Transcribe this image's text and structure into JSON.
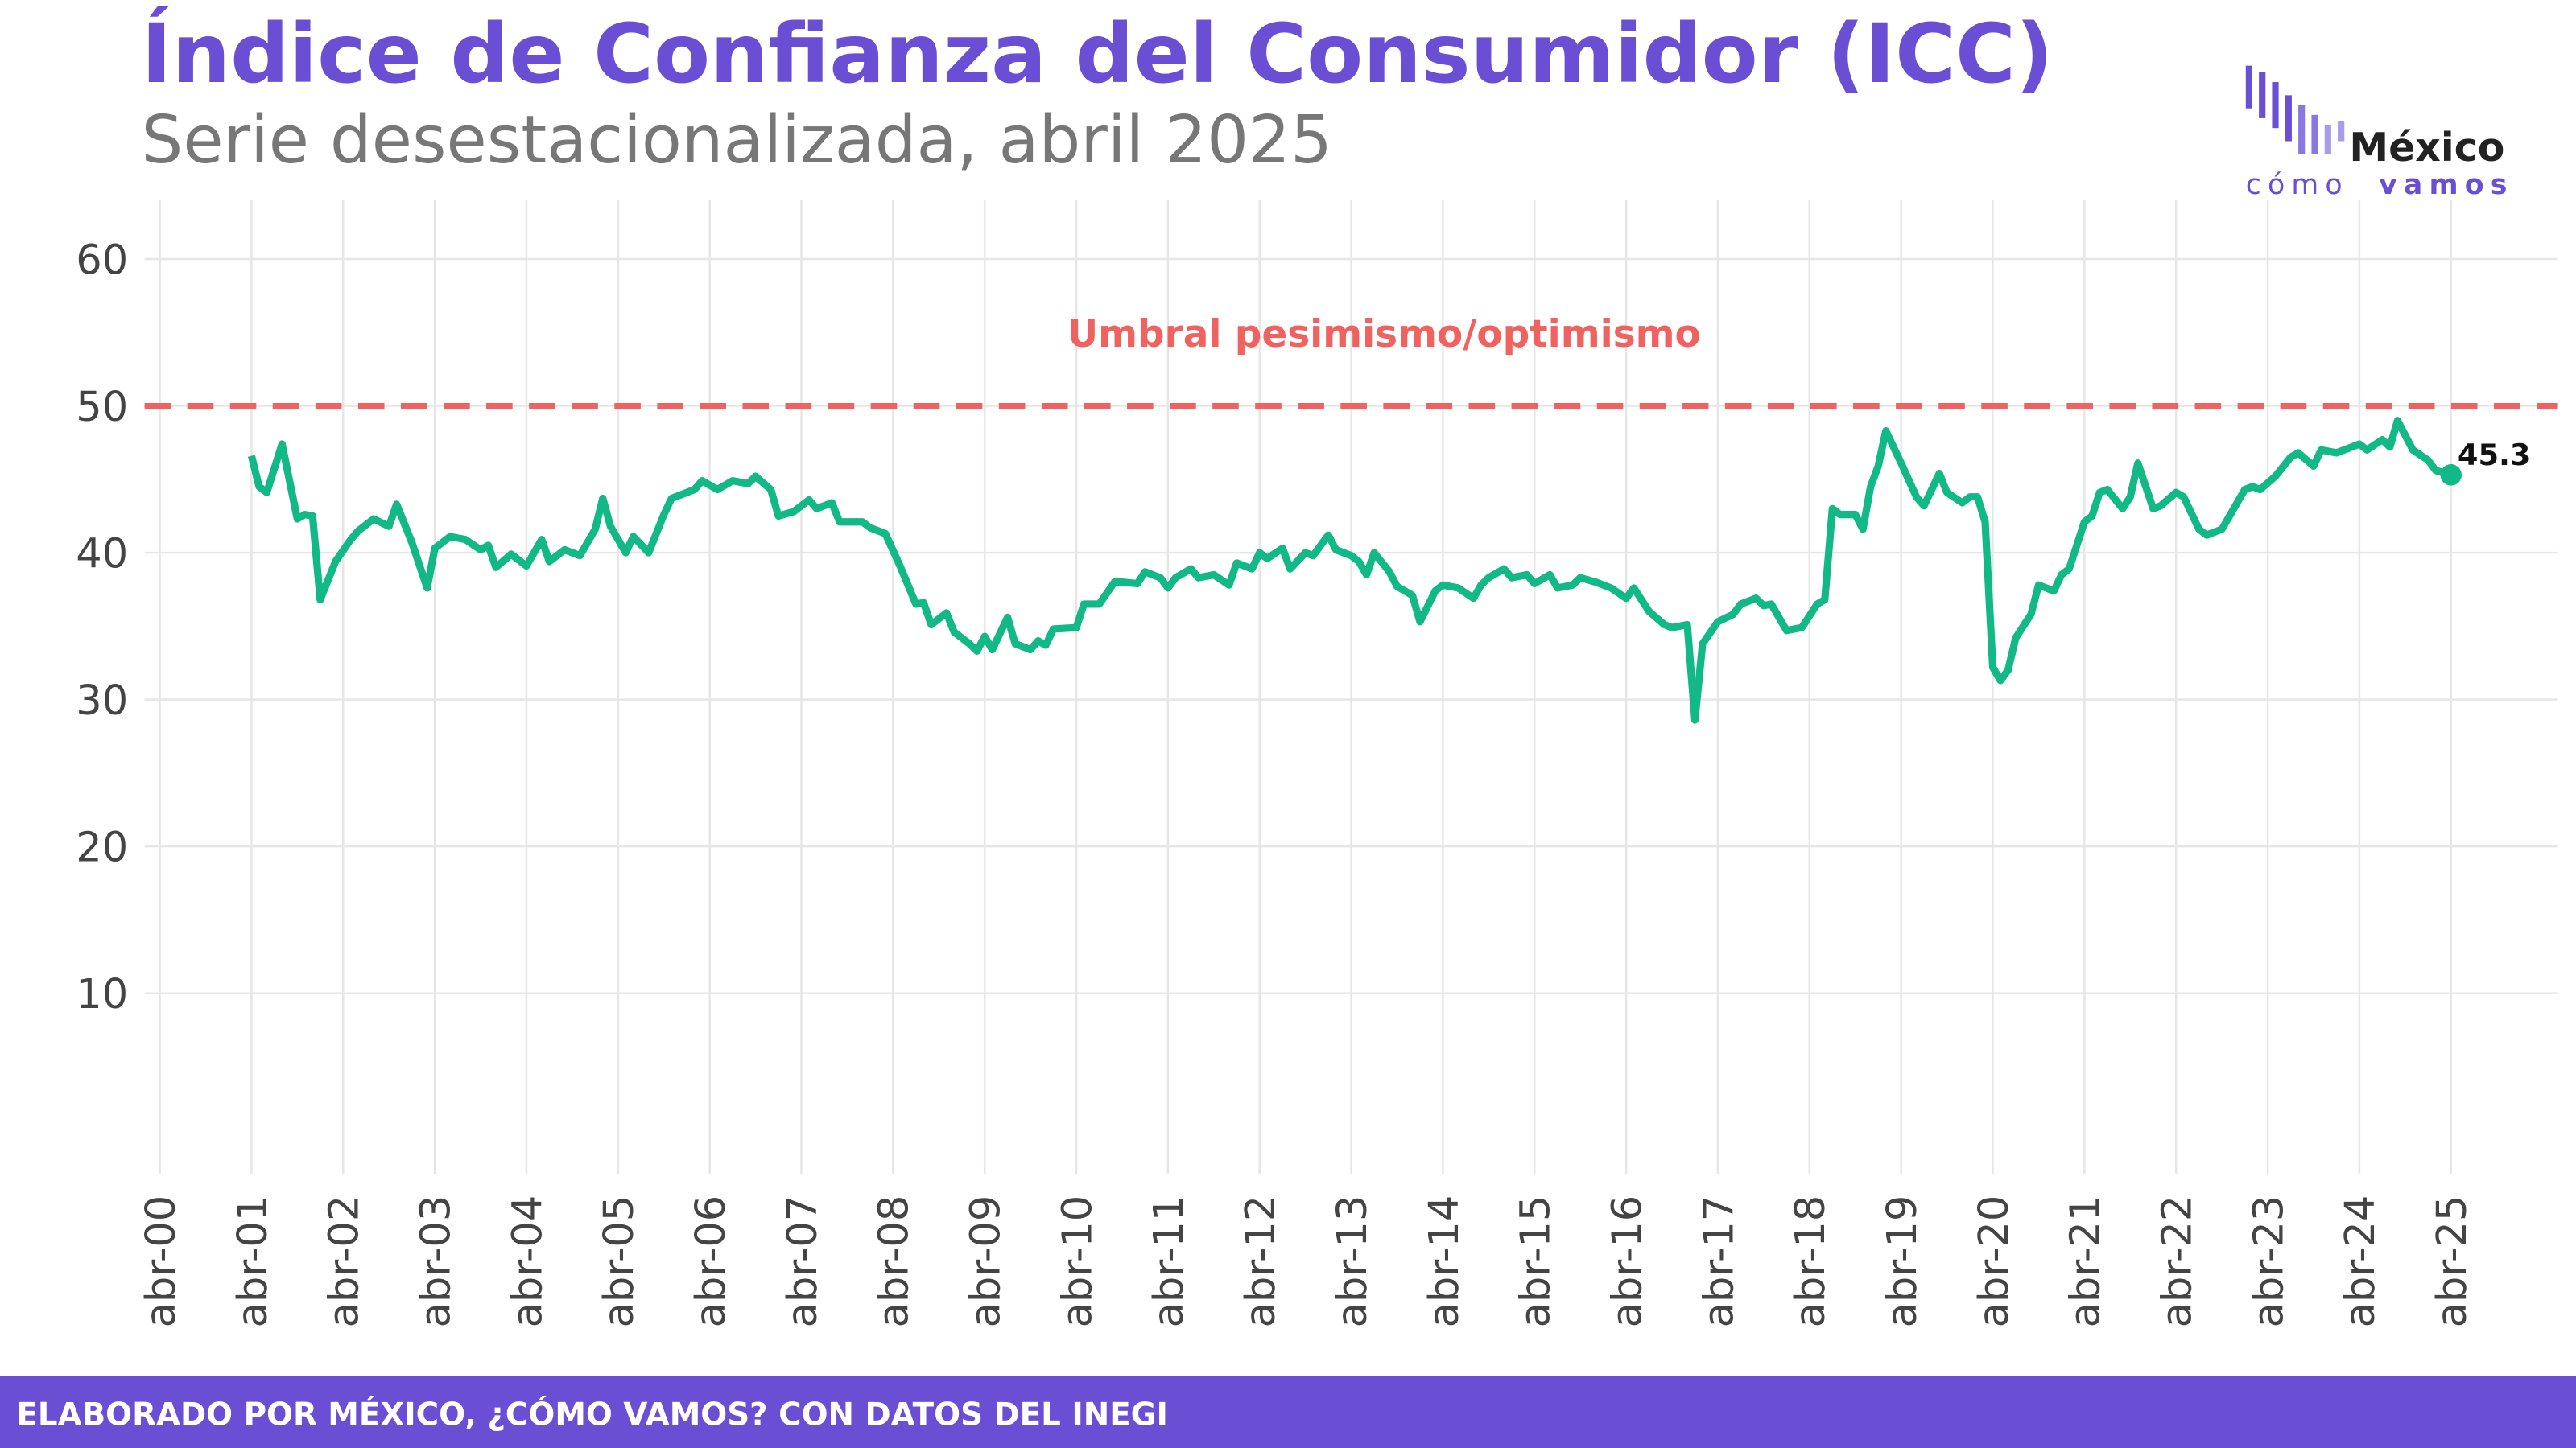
{
  "chart_data": {
    "type": "line",
    "title": "Índice de Confianza del Consumidor (ICC)",
    "subtitle": "Serie desestacionalizada, abril 2025",
    "source": "ELABORADO POR MÉXICO, ¿CÓMO VAMOS? CON DATOS DEL INEGI",
    "logo": {
      "name": "México",
      "tag_a": "cómo",
      "tag_b": "vamos"
    },
    "threshold": {
      "value": 50,
      "label": "Umbral pesimismo/optimismo",
      "color": "#f0625f"
    },
    "grid": true,
    "xlim": [
      "2000-02",
      "2026-06"
    ],
    "ylim": [
      -2.3,
      64
    ],
    "yticks": [
      10,
      20,
      30,
      40,
      50,
      60
    ],
    "xticks": [
      {
        "value": "2000-04",
        "label": "abr-00"
      },
      {
        "value": "2001-04",
        "label": "abr-01"
      },
      {
        "value": "2002-04",
        "label": "abr-02"
      },
      {
        "value": "2003-04",
        "label": "abr-03"
      },
      {
        "value": "2004-04",
        "label": "abr-04"
      },
      {
        "value": "2005-04",
        "label": "abr-05"
      },
      {
        "value": "2006-04",
        "label": "abr-06"
      },
      {
        "value": "2007-04",
        "label": "abr-07"
      },
      {
        "value": "2008-04",
        "label": "abr-08"
      },
      {
        "value": "2009-04",
        "label": "abr-09"
      },
      {
        "value": "2010-04",
        "label": "abr-10"
      },
      {
        "value": "2011-04",
        "label": "abr-11"
      },
      {
        "value": "2012-04",
        "label": "abr-12"
      },
      {
        "value": "2013-04",
        "label": "abr-13"
      },
      {
        "value": "2014-04",
        "label": "abr-14"
      },
      {
        "value": "2015-04",
        "label": "abr-15"
      },
      {
        "value": "2016-04",
        "label": "abr-16"
      },
      {
        "value": "2017-04",
        "label": "abr-17"
      },
      {
        "value": "2018-04",
        "label": "abr-18"
      },
      {
        "value": "2019-04",
        "label": "abr-19"
      },
      {
        "value": "2020-04",
        "label": "abr-20"
      },
      {
        "value": "2021-04",
        "label": "abr-21"
      },
      {
        "value": "2022-04",
        "label": "abr-22"
      },
      {
        "value": "2023-04",
        "label": "abr-23"
      },
      {
        "value": "2024-04",
        "label": "abr-24"
      },
      {
        "value": "2025-04",
        "label": "abr-25"
      }
    ],
    "x": [
      "2001-04",
      "2001-05",
      "2001-06",
      "2001-08",
      "2001-10",
      "2001-11",
      "2001-12",
      "2002-01",
      "2002-03",
      "2002-05",
      "2002-06",
      "2002-08",
      "2002-10",
      "2002-11",
      "2003-01",
      "2003-03",
      "2003-04",
      "2003-06",
      "2003-08",
      "2003-10",
      "2003-11",
      "2003-12",
      "2004-02",
      "2004-04",
      "2004-06",
      "2004-07",
      "2004-09",
      "2004-11",
      "2005-01",
      "2005-02",
      "2005-03",
      "2005-05",
      "2005-06",
      "2005-08",
      "2005-10",
      "2005-11",
      "2006-02",
      "2006-03",
      "2006-05",
      "2006-07",
      "2006-09",
      "2006-10",
      "2006-12",
      "2007-01",
      "2007-03",
      "2007-05",
      "2007-06",
      "2007-08",
      "2007-09",
      "2007-12",
      "2008-01",
      "2008-03",
      "2008-05",
      "2008-07",
      "2008-08",
      "2008-09",
      "2008-11",
      "2008-12",
      "2009-02",
      "2009-03",
      "2009-04",
      "2009-05",
      "2009-07",
      "2009-08",
      "2009-10",
      "2009-11",
      "2009-12",
      "2010-01",
      "2010-04",
      "2010-05",
      "2010-07",
      "2010-09",
      "2010-10",
      "2010-12",
      "2011-01",
      "2011-03",
      "2011-04",
      "2011-05",
      "2011-07",
      "2011-08",
      "2011-10",
      "2011-12",
      "2012-01",
      "2012-03",
      "2012-04",
      "2012-05",
      "2012-07",
      "2012-08",
      "2012-10",
      "2012-11",
      "2013-01",
      "2013-02",
      "2013-04",
      "2013-05",
      "2013-06",
      "2013-07",
      "2013-09",
      "2013-10",
      "2013-12",
      "2014-01",
      "2014-03",
      "2014-04",
      "2014-06",
      "2014-08",
      "2014-09",
      "2014-10",
      "2014-12",
      "2015-01",
      "2015-03",
      "2015-04",
      "2015-06",
      "2015-07",
      "2015-09",
      "2015-10",
      "2015-12",
      "2016-02",
      "2016-04",
      "2016-05",
      "2016-07",
      "2016-09",
      "2016-10",
      "2016-12",
      "2017-01",
      "2017-02",
      "2017-04",
      "2017-06",
      "2017-07",
      "2017-09",
      "2017-10",
      "2017-11",
      "2018-01",
      "2018-03",
      "2018-05",
      "2018-06",
      "2018-07",
      "2018-08",
      "2018-10",
      "2018-11",
      "2018-12",
      "2019-01",
      "2019-02",
      "2019-04",
      "2019-06",
      "2019-07",
      "2019-09",
      "2019-10",
      "2019-12",
      "2020-01",
      "2020-02",
      "2020-03",
      "2020-04",
      "2020-05",
      "2020-06",
      "2020-07",
      "2020-09",
      "2020-10",
      "2020-12",
      "2021-01",
      "2021-02",
      "2021-04",
      "2021-05",
      "2021-06",
      "2021-07",
      "2021-09",
      "2021-10",
      "2021-11",
      "2022-01",
      "2022-02",
      "2022-04",
      "2022-05",
      "2022-07",
      "2022-08",
      "2022-10",
      "2022-11",
      "2023-01",
      "2023-02",
      "2023-03",
      "2023-05",
      "2023-07",
      "2023-08",
      "2023-10",
      "2023-11",
      "2024-01",
      "2024-02",
      "2024-04",
      "2024-05",
      "2024-07",
      "2024-08",
      "2024-09",
      "2024-11",
      "2025-01",
      "2025-02",
      "2025-04"
    ],
    "series": [
      {
        "name": "ICC",
        "color": "#12b886",
        "values": [
          46.6,
          44.5,
          44.1,
          47.4,
          42.3,
          42.6,
          42.5,
          36.8,
          39.4,
          40.9,
          41.5,
          42.3,
          41.8,
          43.3,
          40.7,
          37.6,
          40.3,
          41.1,
          40.9,
          40.2,
          40.5,
          39.0,
          39.9,
          39.1,
          40.9,
          39.4,
          40.2,
          39.8,
          41.6,
          43.7,
          41.8,
          40.0,
          41.1,
          40.0,
          42.6,
          43.7,
          44.3,
          44.9,
          44.3,
          44.9,
          44.7,
          45.2,
          44.3,
          42.5,
          42.8,
          43.6,
          43.0,
          43.4,
          42.1,
          42.1,
          41.7,
          41.3,
          39.0,
          36.5,
          36.6,
          35.1,
          35.9,
          34.6,
          33.8,
          33.3,
          34.3,
          33.4,
          35.6,
          33.8,
          33.4,
          34.0,
          33.7,
          34.8,
          34.9,
          36.5,
          36.5,
          38.0,
          38.0,
          37.9,
          38.7,
          38.3,
          37.6,
          38.3,
          38.9,
          38.3,
          38.5,
          37.8,
          39.3,
          38.9,
          40.0,
          39.6,
          40.3,
          38.9,
          40.0,
          39.8,
          41.2,
          40.2,
          39.8,
          39.4,
          38.5,
          40.0,
          38.7,
          37.7,
          37.1,
          35.3,
          37.4,
          37.8,
          37.6,
          36.9,
          37.8,
          38.3,
          38.9,
          38.3,
          38.5,
          37.9,
          38.5,
          37.6,
          37.8,
          38.3,
          38.0,
          37.6,
          36.9,
          37.6,
          36.0,
          35.1,
          34.9,
          35.1,
          28.6,
          33.8,
          35.3,
          35.8,
          36.5,
          36.9,
          36.4,
          36.5,
          34.7,
          34.9,
          36.5,
          36.8,
          43.0,
          42.6,
          42.6,
          41.6,
          44.5,
          45.9,
          48.3,
          46.1,
          43.8,
          43.2,
          45.4,
          44.1,
          43.4,
          43.8,
          43.8,
          42.1,
          32.2,
          31.3,
          32.0,
          34.2,
          35.8,
          37.8,
          37.4,
          38.5,
          38.9,
          42.1,
          42.5,
          44.1,
          44.3,
          43.0,
          43.8,
          46.1,
          43.0,
          43.2,
          44.1,
          43.8,
          41.6,
          41.2,
          41.6,
          42.5,
          44.3,
          44.5,
          44.3,
          45.2,
          46.5,
          46.8,
          45.9,
          47.0,
          46.8,
          47.0,
          47.4,
          47.0,
          47.7,
          47.2,
          49.0,
          47.0,
          46.3,
          45.6,
          45.3
        ]
      }
    ]
  }
}
